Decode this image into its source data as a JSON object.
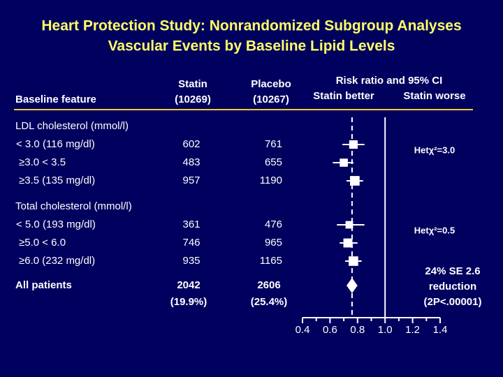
{
  "chart_data": {
    "type": "forest",
    "title": "Heart Protection Study: Nonrandomized Subgroup Analyses",
    "subtitle": "Vascular Events by Baseline Lipid Levels",
    "columns": {
      "feature": "Baseline feature",
      "statin": [
        "Statin",
        "(10269)"
      ],
      "placebo": [
        "Placebo",
        "(10267)"
      ],
      "plot": "Risk ratio and 95%  CI",
      "better": "Statin better",
      "worse": "Statin worse"
    },
    "groups": [
      {
        "name": "LDL cholesterol (mmol/l)",
        "heterogeneity": "Hetχ²=3.0",
        "rows": [
          {
            "label": "< 3.0 (116 mg/dl)",
            "statin": 602,
            "placebo": 761,
            "estimate": 0.77,
            "ci": [
              0.69,
              0.85
            ]
          },
          {
            "label": "≥3.0 < 3.5",
            "statin": 483,
            "placebo": 655,
            "estimate": 0.7,
            "ci": [
              0.62,
              0.77
            ]
          },
          {
            "label": "≥3.5 (135 mg/dl)",
            "statin": 957,
            "placebo": 1190,
            "estimate": 0.78,
            "ci": [
              0.72,
              0.84
            ]
          }
        ]
      },
      {
        "name": "Total cholesterol (mmol/l)",
        "heterogeneity": "Hetχ²=0.5",
        "rows": [
          {
            "label": "< 5.0 (193 mg/dl)",
            "statin": 361,
            "placebo": 476,
            "estimate": 0.74,
            "ci": [
              0.65,
              0.85
            ]
          },
          {
            "label": "≥5.0 < 6.0",
            "statin": 746,
            "placebo": 965,
            "estimate": 0.73,
            "ci": [
              0.67,
              0.8
            ]
          },
          {
            "label": "≥6.0 (232 mg/dl)",
            "statin": 935,
            "placebo": 1165,
            "estimate": 0.77,
            "ci": [
              0.71,
              0.83
            ]
          }
        ]
      }
    ],
    "overall": {
      "label": "All patients",
      "statin": 2042,
      "statin_note": "(19.9%)",
      "placebo": 2606,
      "placebo_note": "(25.4%)",
      "estimate": 0.76,
      "ci": [
        0.72,
        0.8
      ]
    },
    "annotation": [
      "24%  SE 2.6",
      "reduction",
      "(2P<.00001)"
    ],
    "xlim": [
      0.4,
      1.4
    ],
    "xticks": [
      0.4,
      0.6,
      0.8,
      {
        "value": 1,
        "label": "1.0"
      },
      1.2,
      1.4
    ],
    "xminorticks": [
      0.5,
      0.7,
      0.9,
      1.1,
      1.3
    ],
    "ref_line": 1,
    "color": "#ffffff"
  }
}
